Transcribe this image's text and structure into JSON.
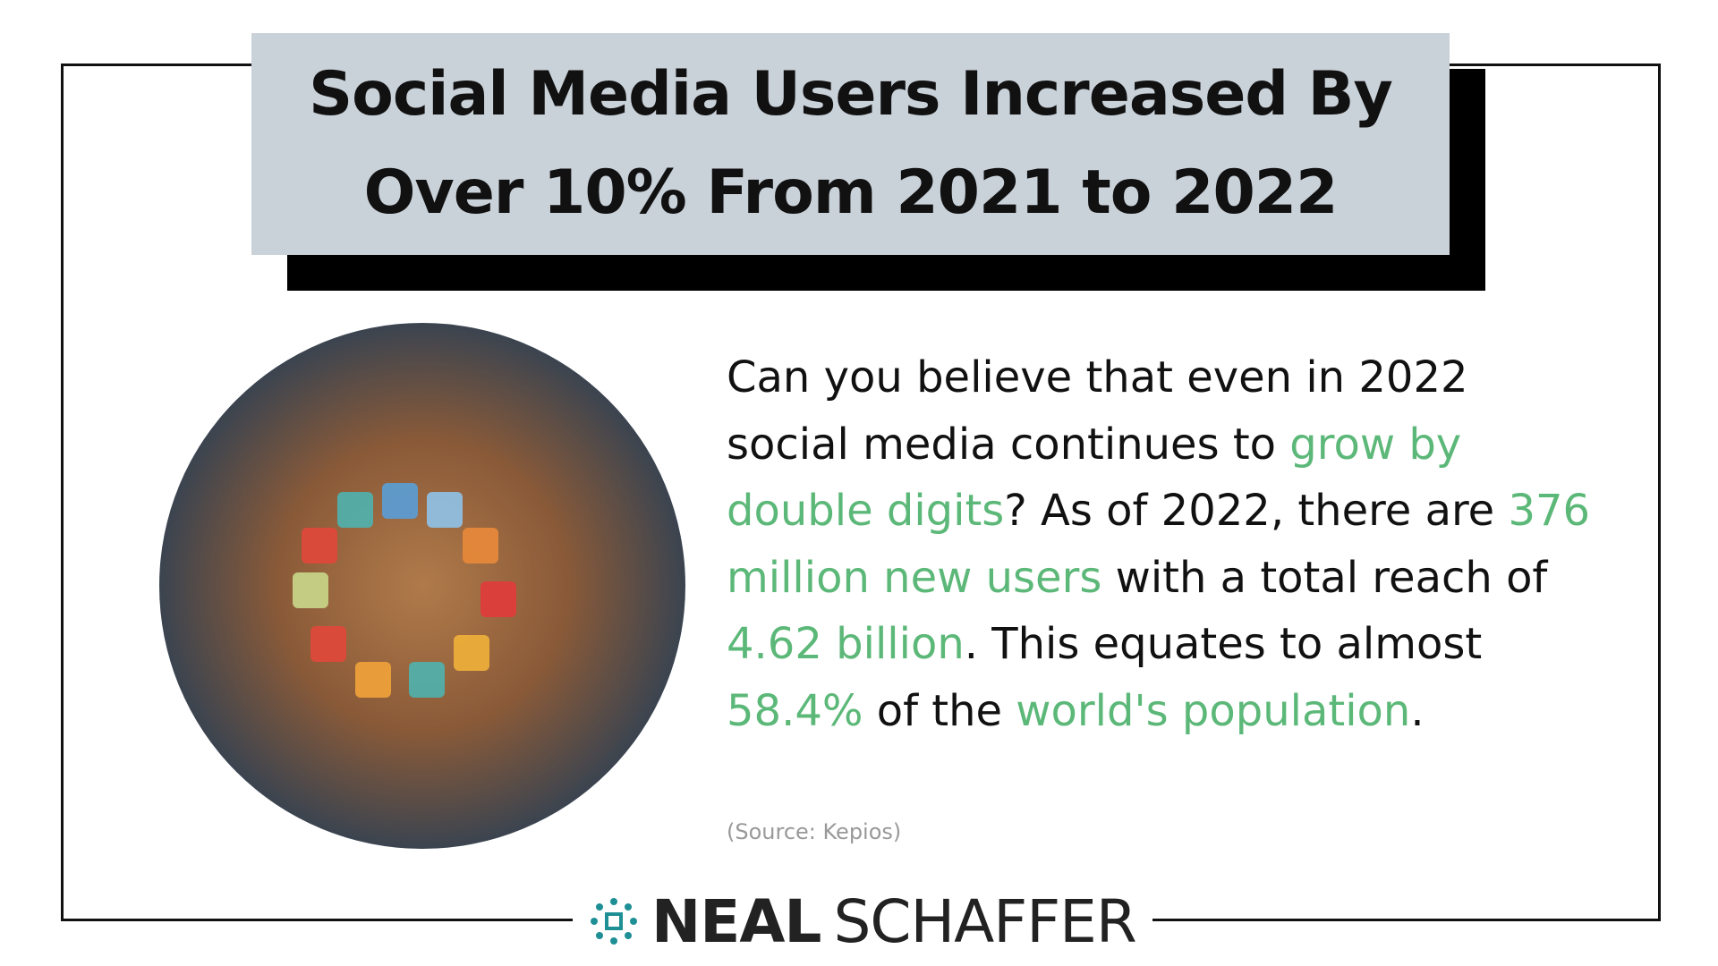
{
  "title": {
    "lines": [
      "Social Media Users Increased By",
      "Over 10% From 2021 to 2022"
    ]
  },
  "body": {
    "segments": [
      {
        "text": "Can you believe that even in 2022 social media continues to ",
        "highlight": false
      },
      {
        "text": "grow by double digits",
        "highlight": true
      },
      {
        "text": "? As of 2022, there are ",
        "highlight": false
      },
      {
        "text": "376 million new users",
        "highlight": true
      },
      {
        "text": " with a total reach of ",
        "highlight": false
      },
      {
        "text": "4.62 billion",
        "highlight": true
      },
      {
        "text": ". This equates to almost ",
        "highlight": false
      },
      {
        "text": "58.4%",
        "highlight": true
      },
      {
        "text": " of the ",
        "highlight": false
      },
      {
        "text": "world's population",
        "highlight": true
      },
      {
        "text": ".",
        "highlight": false
      }
    ]
  },
  "source": "(Source: Kepios)",
  "brand": {
    "first": "NEAL",
    "last": "SCHAFFER"
  }
}
